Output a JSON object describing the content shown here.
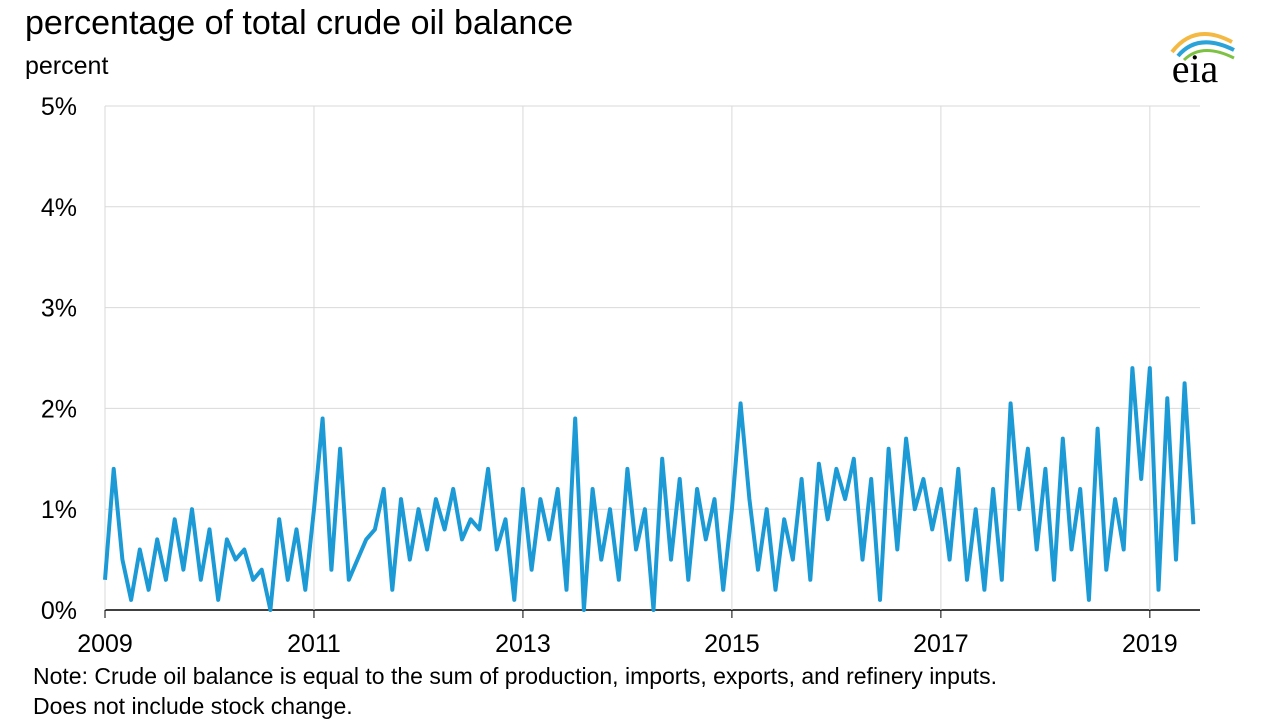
{
  "chart_data": {
    "type": "line",
    "title": "percentage of total crude oil balance",
    "subtitle": "percent",
    "logo": "eia",
    "notes": [
      "Note: Crude oil balance is equal to the sum of production, imports, exports, and refinery inputs.",
      "Does not include stock change."
    ],
    "x": [
      2009,
      2009.083,
      2009.167,
      2009.25,
      2009.333,
      2009.417,
      2009.5,
      2009.583,
      2009.667,
      2009.75,
      2009.833,
      2009.917,
      2010,
      2010.083,
      2010.167,
      2010.25,
      2010.333,
      2010.417,
      2010.5,
      2010.583,
      2010.667,
      2010.75,
      2010.833,
      2010.917,
      2011,
      2011.083,
      2011.167,
      2011.25,
      2011.333,
      2011.417,
      2011.5,
      2011.583,
      2011.667,
      2011.75,
      2011.833,
      2011.917,
      2012,
      2012.083,
      2012.167,
      2012.25,
      2012.333,
      2012.417,
      2012.5,
      2012.583,
      2012.667,
      2012.75,
      2012.833,
      2012.917,
      2013,
      2013.083,
      2013.167,
      2013.25,
      2013.333,
      2013.417,
      2013.5,
      2013.583,
      2013.667,
      2013.75,
      2013.833,
      2013.917,
      2014,
      2014.083,
      2014.167,
      2014.25,
      2014.333,
      2014.417,
      2014.5,
      2014.583,
      2014.667,
      2014.75,
      2014.833,
      2014.917,
      2015,
      2015.083,
      2015.167,
      2015.25,
      2015.333,
      2015.417,
      2015.5,
      2015.583,
      2015.667,
      2015.75,
      2015.833,
      2015.917,
      2016,
      2016.083,
      2016.167,
      2016.25,
      2016.333,
      2016.417,
      2016.5,
      2016.583,
      2016.667,
      2016.75,
      2016.833,
      2016.917,
      2017,
      2017.083,
      2017.167,
      2017.25,
      2017.333,
      2017.417,
      2017.5,
      2017.583,
      2017.667,
      2017.75,
      2017.833,
      2017.917,
      2018,
      2018.083,
      2018.167,
      2018.25,
      2018.333,
      2018.417,
      2018.5,
      2018.583,
      2018.667,
      2018.75,
      2018.833,
      2018.917,
      2019,
      2019.083,
      2019.167,
      2019.25,
      2019.333,
      2019.417
    ],
    "series": [
      {
        "color": "#1c9ad6",
        "values": [
          0.3,
          1.4,
          0.5,
          0.1,
          0.6,
          0.2,
          0.7,
          0.3,
          0.9,
          0.4,
          1.0,
          0.3,
          0.8,
          0.1,
          0.7,
          0.5,
          0.6,
          0.3,
          0.4,
          0.0,
          0.9,
          0.3,
          0.8,
          0.2,
          1.0,
          1.9,
          0.4,
          1.6,
          0.3,
          0.5,
          0.7,
          0.8,
          1.2,
          0.2,
          1.1,
          0.5,
          1.0,
          0.6,
          1.1,
          0.8,
          1.2,
          0.7,
          0.9,
          0.8,
          1.4,
          0.6,
          0.9,
          0.1,
          1.2,
          0.4,
          1.1,
          0.7,
          1.2,
          0.2,
          1.9,
          0.0,
          1.2,
          0.5,
          1.0,
          0.3,
          1.4,
          0.6,
          1.0,
          0.0,
          1.5,
          0.5,
          1.3,
          0.3,
          1.2,
          0.7,
          1.1,
          0.2,
          1.0,
          2.05,
          1.1,
          0.4,
          1.0,
          0.2,
          0.9,
          0.5,
          1.3,
          0.3,
          1.45,
          0.9,
          1.4,
          1.1,
          1.5,
          0.5,
          1.3,
          0.1,
          1.6,
          0.6,
          1.7,
          1.0,
          1.3,
          0.8,
          1.2,
          0.5,
          1.4,
          0.3,
          1.0,
          0.2,
          1.2,
          0.3,
          2.05,
          1.0,
          1.6,
          0.6,
          1.4,
          0.3,
          1.7,
          0.6,
          1.2,
          0.1,
          1.8,
          0.4,
          1.1,
          0.6,
          2.4,
          1.3,
          2.4,
          0.2,
          2.1,
          0.5,
          2.25,
          0.85
        ]
      }
    ],
    "xlim": [
      2009,
      2019.48
    ],
    "xticks": [
      2009,
      2011,
      2013,
      2015,
      2017,
      2019
    ],
    "ylim": [
      0,
      5
    ],
    "yticks": [
      {
        "value": 0,
        "label": "0%"
      },
      {
        "value": 1,
        "label": "1%"
      },
      {
        "value": 2,
        "label": "2%"
      },
      {
        "value": 3,
        "label": "3%"
      },
      {
        "value": 4,
        "label": "4%"
      },
      {
        "value": 5,
        "label": "5%"
      }
    ],
    "grid": true
  }
}
